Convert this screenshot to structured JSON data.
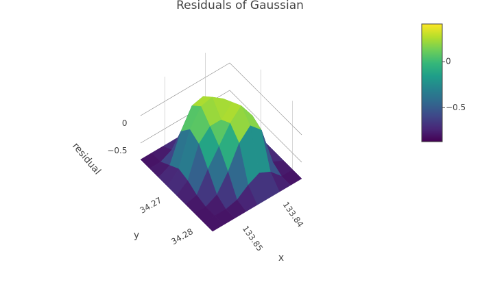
{
  "chart_data": {
    "type": "surface",
    "title": "Residuals of Gaussian",
    "x_label": "x",
    "y_label": "y",
    "z_label": "residual",
    "x": [
      133.834,
      133.83675,
      133.8395,
      133.84225,
      133.845,
      133.84775,
      133.8505,
      133.85325,
      133.856
    ],
    "y": [
      34.26,
      34.262875,
      34.26575,
      34.268625,
      34.2715,
      34.274375,
      34.27725,
      34.280125,
      34.283
    ],
    "z": [
      [
        -0.8,
        -0.8,
        -0.8,
        -0.8,
        -0.8,
        -0.8,
        -0.8,
        -0.8,
        -0.8
      ],
      [
        -0.8,
        -0.8,
        -0.75,
        -0.6,
        -0.5,
        -0.55,
        -0.7,
        -0.8,
        -0.8
      ],
      [
        -0.8,
        -0.75,
        -0.4,
        0.0,
        0.2,
        0.15,
        -0.2,
        -0.7,
        -0.8
      ],
      [
        -0.8,
        -0.7,
        -0.2,
        0.2,
        0.35,
        0.3,
        0.0,
        -0.6,
        -0.8
      ],
      [
        -0.8,
        -0.65,
        0.0,
        0.3,
        0.1,
        0.1,
        -0.1,
        -0.65,
        -0.8
      ],
      [
        -0.8,
        -0.6,
        0.1,
        0.4,
        0.2,
        -0.1,
        -0.4,
        -0.75,
        -0.8
      ],
      [
        -0.8,
        -0.7,
        0.0,
        0.2,
        0.0,
        -0.4,
        -0.7,
        -0.8,
        -0.8
      ],
      [
        -0.8,
        -0.8,
        -0.6,
        -0.5,
        -0.6,
        -0.75,
        -0.8,
        -0.8,
        -0.8
      ],
      [
        -0.8,
        -0.8,
        -0.8,
        -0.8,
        -0.8,
        -0.8,
        -0.8,
        -0.8,
        -0.8
      ]
    ],
    "xlim": [
      133.834,
      133.856
    ],
    "ylim": [
      34.26,
      34.283
    ],
    "zlim": [
      -0.85,
      0.45
    ],
    "xticks": [
      133.84,
      133.85
    ],
    "yticks": [
      34.27,
      34.28
    ],
    "zticks": [
      {
        "value": 0,
        "label": "0"
      },
      {
        "value": -0.5,
        "label": "−0.5"
      }
    ],
    "clim": [
      -0.87,
      0.41
    ],
    "colorbar_ticks": [
      {
        "value": 0,
        "label": "0"
      },
      {
        "value": -0.5,
        "label": "−0.5"
      }
    ],
    "colorscale": [
      "#440154",
      "#482878",
      "#3e4989",
      "#31688e",
      "#26828e",
      "#1f9e89",
      "#35b779",
      "#6ece58",
      "#b5de2b",
      "#fde725"
    ]
  }
}
